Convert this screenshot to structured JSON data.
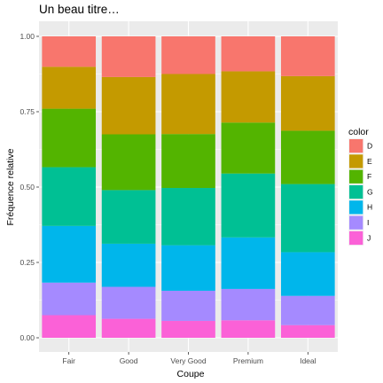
{
  "chart_data": {
    "type": "bar",
    "stacked": true,
    "title": "Un beau titre…",
    "xlabel": "Coupe",
    "ylabel": "Fréquence relative",
    "ylim": [
      0,
      1
    ],
    "yticks": [
      "0.00",
      "0.25",
      "0.50",
      "0.75",
      "1.00"
    ],
    "categories": [
      "Fair",
      "Good",
      "Very Good",
      "Premium",
      "Ideal"
    ],
    "legend_title": "color",
    "legend_position": "right",
    "grid": true,
    "panel_background": "#ebebeb",
    "series": [
      {
        "name": "D",
        "color": "#F8766D",
        "values": [
          0.101,
          0.135,
          0.125,
          0.116,
          0.132
        ]
      },
      {
        "name": "E",
        "color": "#C49A00",
        "values": [
          0.139,
          0.19,
          0.199,
          0.17,
          0.181
        ]
      },
      {
        "name": "F",
        "color": "#53B400",
        "values": [
          0.194,
          0.185,
          0.179,
          0.169,
          0.177
        ]
      },
      {
        "name": "G",
        "color": "#00C094",
        "values": [
          0.195,
          0.178,
          0.19,
          0.212,
          0.226
        ]
      },
      {
        "name": "H",
        "color": "#00B6EB",
        "values": [
          0.188,
          0.143,
          0.151,
          0.171,
          0.145
        ]
      },
      {
        "name": "I",
        "color": "#A58AFF",
        "values": [
          0.108,
          0.106,
          0.1,
          0.104,
          0.097
        ]
      },
      {
        "name": "J",
        "color": "#FB61D7",
        "values": [
          0.075,
          0.063,
          0.056,
          0.058,
          0.042
        ]
      }
    ]
  }
}
